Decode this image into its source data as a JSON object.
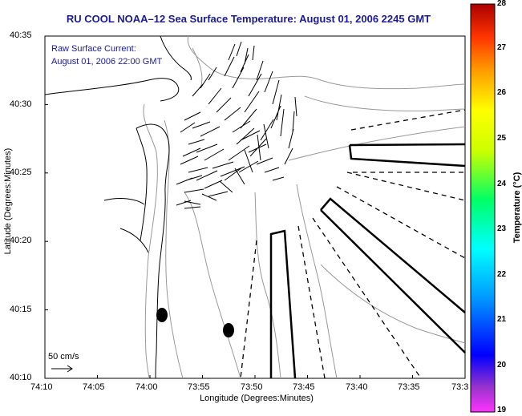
{
  "title": "RU COOL  NOAA–12  Sea Surface Temperature:  August 01, 2006 2245 GMT",
  "legend": {
    "current_title": "Raw Surface Current:",
    "current_time": "August 01, 2006 22:00 GMT",
    "scale_label": "50 cm/s"
  },
  "axes": {
    "x_label": "Longitude (Degrees:Minutes)",
    "y_label": "Latitude (Degrees:Minutes)",
    "x_ticks": [
      "74:10",
      "74:05",
      "74:00",
      "73:55",
      "73:50",
      "73:45",
      "73:40",
      "73:35",
      "73:3"
    ],
    "y_ticks": [
      "40:35",
      "40:30",
      "40:25",
      "40:20",
      "40:15",
      "40:10"
    ]
  },
  "colorbar": {
    "title": "Temperature (°C)",
    "labels": [
      "28",
      "27",
      "26",
      "25",
      "24",
      "23",
      "22",
      "21",
      "20",
      "19"
    ]
  },
  "colors": {
    "title": "#1a1a9a",
    "land_outline": "#000000",
    "bathymetry": "#9a9a9a"
  }
}
